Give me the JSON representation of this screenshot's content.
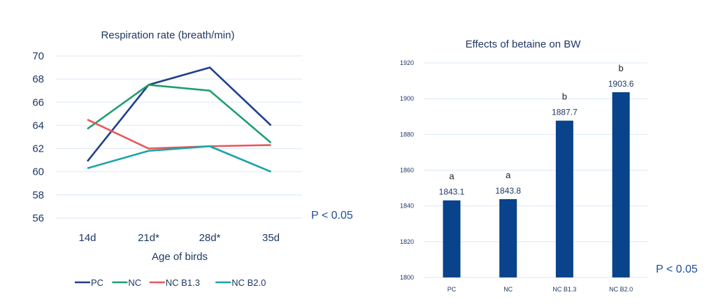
{
  "chart_data": [
    {
      "type": "line",
      "title": "Respiration rate (breath/min)",
      "xlabel": "Age of birds",
      "ylabel": "",
      "categories": [
        "14d",
        "21d*",
        "28d*",
        "35d"
      ],
      "ylim": [
        56,
        70
      ],
      "yticks": [
        56,
        58,
        60,
        62,
        64,
        66,
        68,
        70
      ],
      "grid": true,
      "legend_position": "bottom",
      "annotation": "P < 0.05",
      "series": [
        {
          "name": "PC",
          "color": "#1f3f8a",
          "values": [
            60.9,
            67.5,
            69.0,
            64.0
          ]
        },
        {
          "name": "NC",
          "color": "#1f9e6e",
          "values": [
            63.7,
            67.5,
            67.0,
            62.5
          ]
        },
        {
          "name": "NC B1.3",
          "color": "#e8585a",
          "values": [
            64.5,
            62.0,
            62.2,
            62.3
          ]
        },
        {
          "name": "NC B2.0",
          "color": "#1ba3a8",
          "values": [
            60.3,
            61.8,
            62.2,
            60.0
          ]
        }
      ]
    },
    {
      "type": "bar",
      "title": "Effects of betaine on BW",
      "xlabel": "",
      "ylabel": "",
      "categories": [
        "PC",
        "NC",
        "NC B1.3",
        "NC B2.0"
      ],
      "values": [
        1843.1,
        1843.8,
        1887.7,
        1903.6
      ],
      "data_labels": [
        "1843.1",
        "1843.8",
        "1887.7",
        "1903.6"
      ],
      "significance_letters": [
        "a",
        "a",
        "b",
        "b"
      ],
      "ylim": [
        1800,
        1920
      ],
      "yticks": [
        1800,
        1820,
        1840,
        1860,
        1880,
        1900,
        1920
      ],
      "grid": true,
      "bar_color": "#08438b",
      "annotation": "P < 0.05"
    }
  ]
}
